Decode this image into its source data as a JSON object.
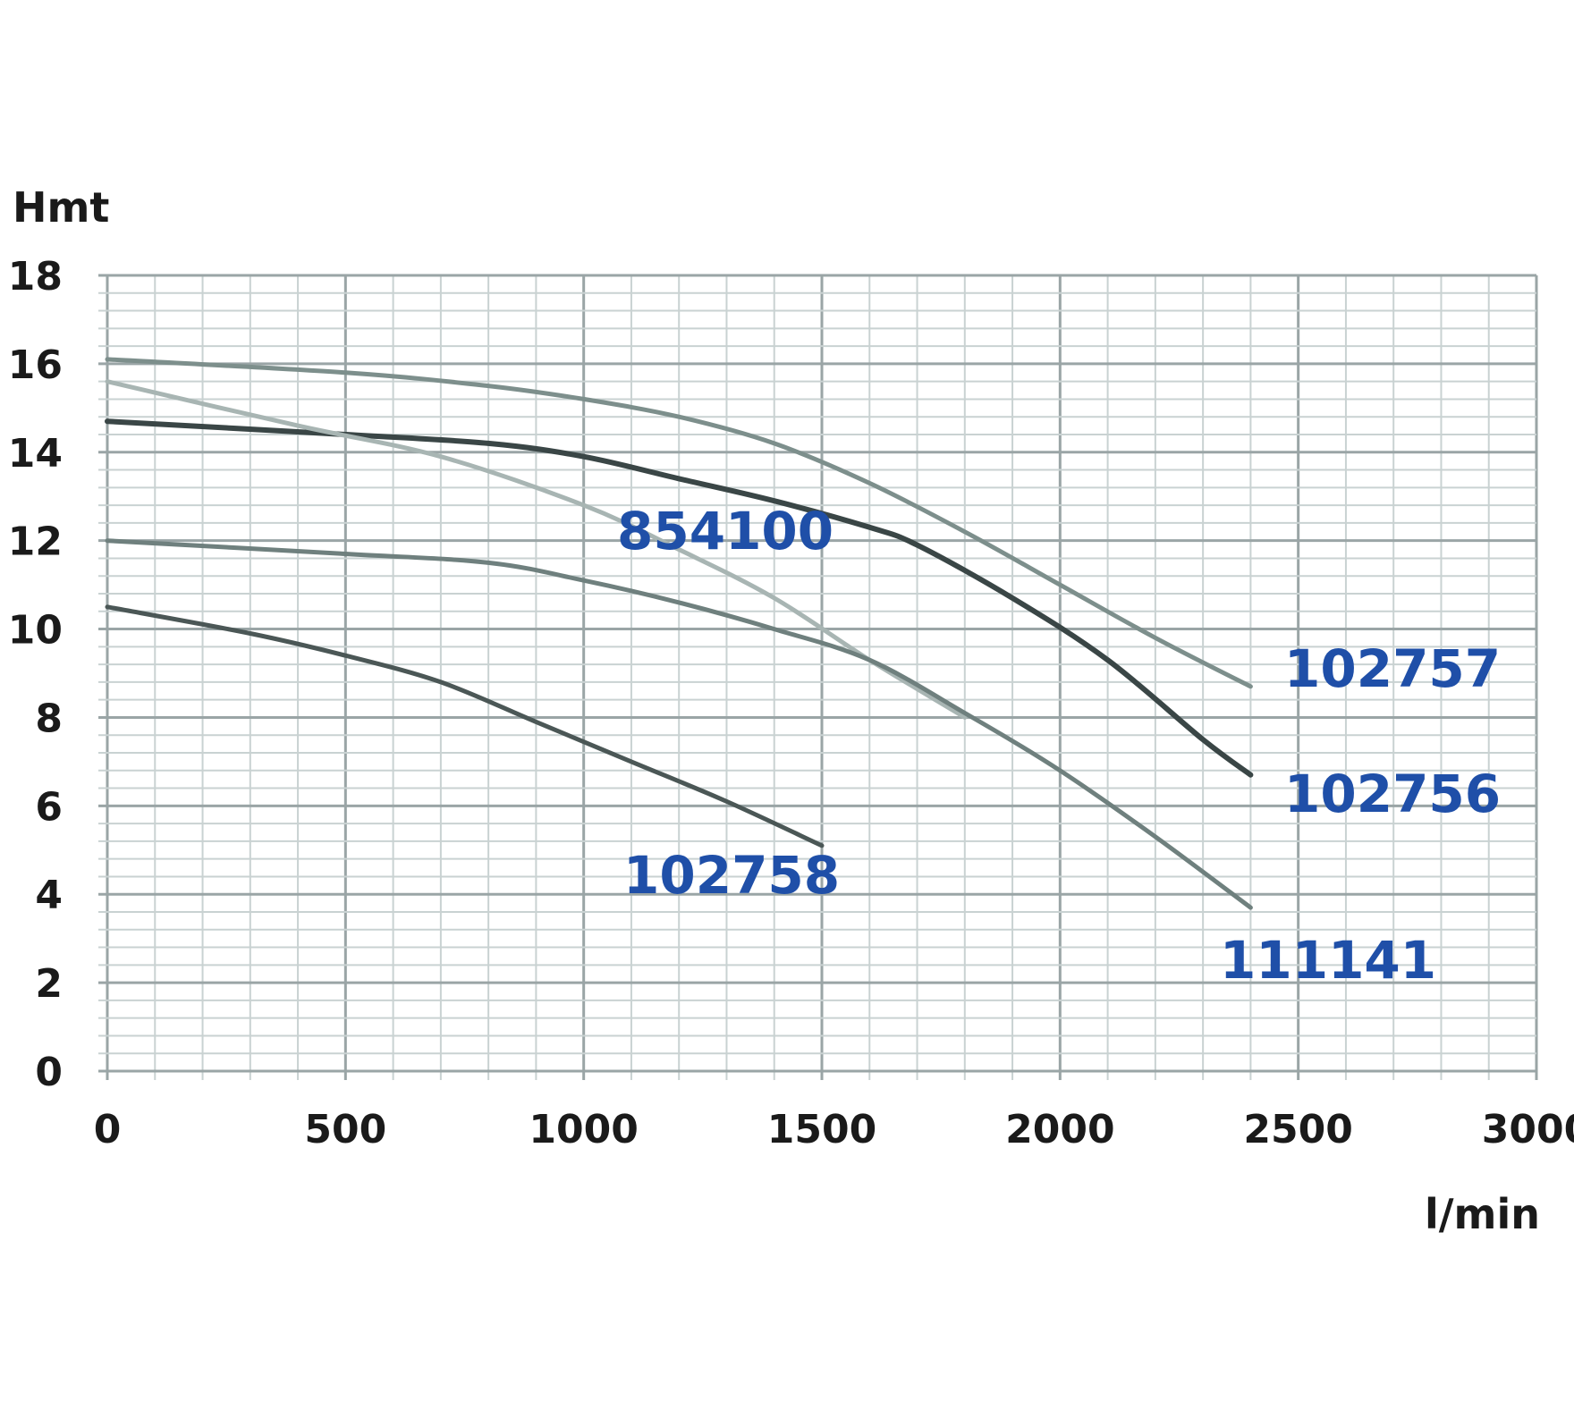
{
  "chart_data": {
    "type": "line",
    "xlabel": "l/min",
    "ylabel": "Hmt",
    "xlim": [
      0,
      3000
    ],
    "ylim": [
      0,
      18
    ],
    "x_ticks": [
      0,
      500,
      1000,
      1500,
      2000,
      2500,
      3000
    ],
    "y_ticks": [
      0,
      2,
      4,
      6,
      8,
      10,
      12,
      14,
      16,
      18
    ],
    "grid": true,
    "colors": {
      "grid_major": "#9aa5a6",
      "grid_minor": "#c9d2d2",
      "label": "#1f4fa8"
    },
    "series": [
      {
        "name": "102757",
        "color": "#7d8f8c",
        "x": [
          0,
          500,
          800,
          1000,
          1200,
          1400,
          1600,
          1800,
          2000,
          2200,
          2400
        ],
        "y": [
          16.1,
          15.8,
          15.5,
          15.2,
          14.8,
          14.2,
          13.3,
          12.2,
          11.0,
          9.8,
          8.7
        ]
      },
      {
        "name": "102756",
        "color": "#3a4646",
        "x": [
          0,
          500,
          800,
          1000,
          1200,
          1400,
          1600,
          1700,
          1900,
          2100,
          2300,
          2400
        ],
        "y": [
          14.7,
          14.4,
          14.2,
          13.9,
          13.4,
          12.9,
          12.3,
          11.9,
          10.7,
          9.3,
          7.5,
          6.7
        ]
      },
      {
        "name": "854100",
        "color": "#a8b5b3",
        "x": [
          0,
          400,
          700,
          1000,
          1200,
          1400,
          1600,
          1800
        ],
        "y": [
          15.6,
          14.6,
          13.9,
          12.8,
          11.8,
          10.7,
          9.3,
          8.0
        ]
      },
      {
        "name": "111141",
        "color": "#6f807e",
        "x": [
          0,
          500,
          800,
          1000,
          1200,
          1400,
          1600,
          1800,
          2000,
          2200,
          2400
        ],
        "y": [
          12.0,
          11.7,
          11.5,
          11.1,
          10.6,
          10.0,
          9.3,
          8.1,
          6.8,
          5.3,
          3.7
        ]
      },
      {
        "name": "102758",
        "color": "#4b5756",
        "x": [
          0,
          300,
          500,
          700,
          900,
          1100,
          1300,
          1500
        ],
        "y": [
          10.5,
          9.9,
          9.4,
          8.8,
          7.9,
          7.0,
          6.1,
          5.1
        ]
      }
    ]
  }
}
